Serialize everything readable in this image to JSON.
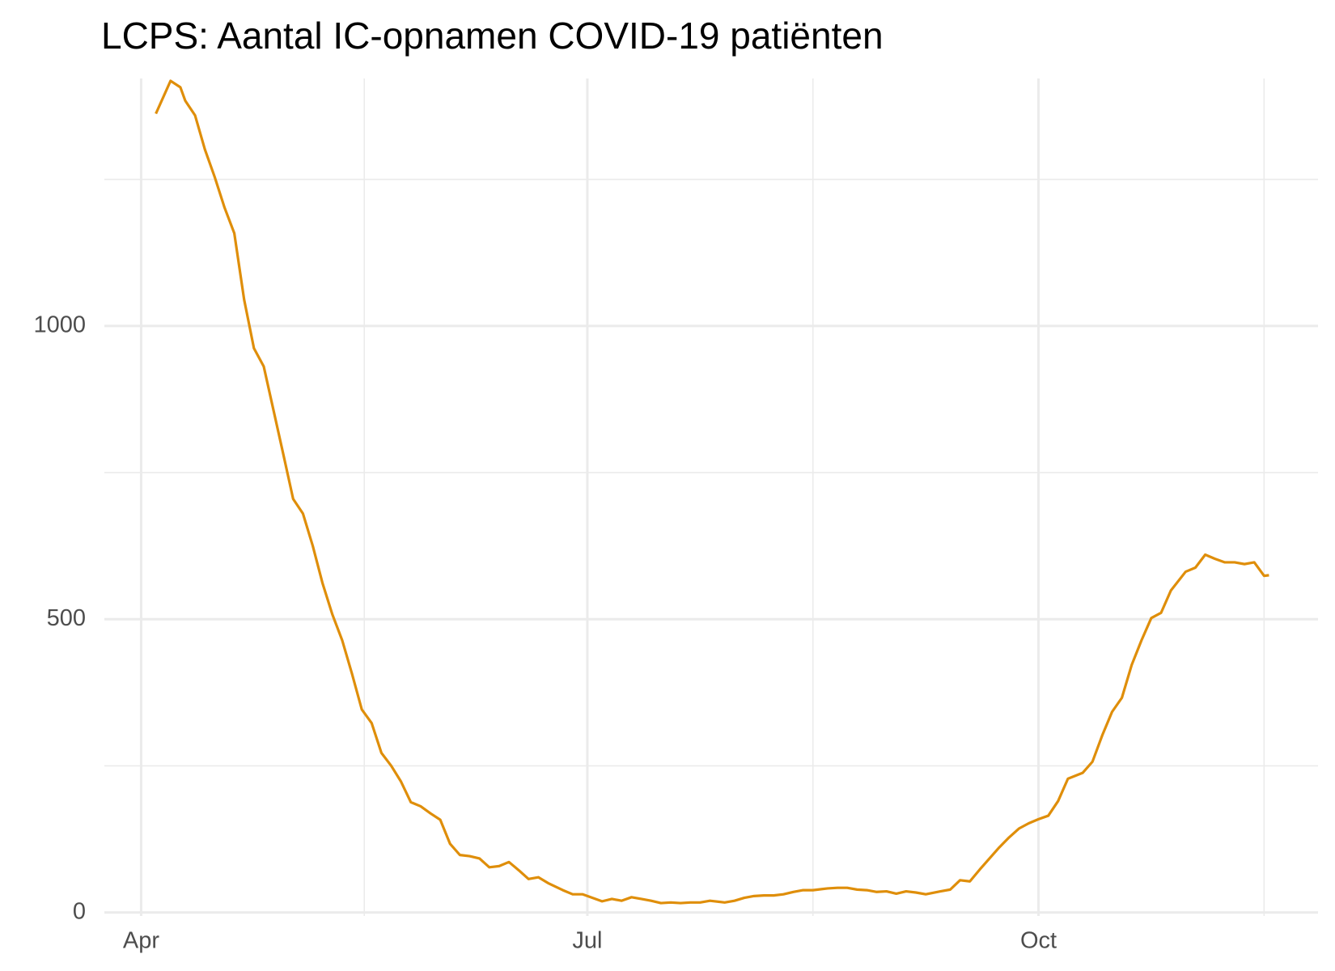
{
  "chart_data": {
    "type": "line",
    "title": "LCPS: Aantal IC-opnamen COVID-19 patiënten",
    "x": [
      3,
      6,
      8,
      9,
      11,
      13,
      15,
      17,
      19,
      21,
      23,
      25,
      27,
      29,
      31,
      33,
      35,
      37,
      39,
      41,
      43,
      45,
      47,
      49,
      51,
      53,
      55,
      57,
      59,
      61,
      63,
      65,
      67,
      69,
      71,
      73,
      75,
      77,
      79,
      81,
      83,
      86,
      88,
      90,
      92,
      94,
      96,
      98,
      100,
      102,
      104,
      106,
      108,
      110,
      112,
      114,
      116,
      119,
      121,
      123,
      125,
      127,
      129,
      131,
      133,
      135,
      137,
      140,
      142,
      144,
      146,
      148,
      150,
      152,
      154,
      156,
      158,
      160,
      163,
      165,
      167,
      169,
      171,
      173,
      175,
      177,
      179,
      181,
      183,
      185,
      187,
      189,
      192,
      194,
      196,
      198,
      200,
      202,
      204,
      206,
      208,
      210,
      213,
      215,
      217,
      219,
      221,
      223,
      225,
      227,
      229,
      230
    ],
    "series": [
      {
        "color": "#df8e0a",
        "values": [
          1362,
          1418,
          1407,
          1384,
          1359,
          1301,
          1254,
          1202,
          1158,
          1045,
          962,
          931,
          856,
          781,
          705,
          680,
          625,
          561,
          508,
          464,
          407,
          346,
          323,
          272,
          250,
          223,
          188,
          181,
          169,
          158,
          117,
          98,
          96,
          92,
          77,
          79,
          86,
          72,
          57,
          60,
          50,
          38,
          31,
          31,
          25,
          19,
          23,
          20,
          26,
          23,
          20,
          16,
          17,
          16,
          17,
          17,
          20,
          17,
          20,
          25,
          28,
          29,
          29,
          31,
          35,
          38,
          38,
          41,
          42,
          42,
          39,
          38,
          35,
          36,
          32,
          36,
          34,
          31,
          36,
          39,
          55,
          53,
          73,
          92,
          111,
          128,
          143,
          152,
          159,
          165,
          190,
          228,
          238,
          257,
          302,
          342,
          366,
          422,
          464,
          502,
          511,
          549,
          581,
          588,
          610,
          603,
          597,
          597,
          594,
          597,
          574,
          575
        ]
      }
    ],
    "xlim": [
      -7.5,
      240
    ],
    "xticks": [
      {
        "value": 0,
        "label": "Apr"
      },
      {
        "value": 91,
        "label": "Jul"
      },
      {
        "value": 183,
        "label": "Oct"
      }
    ],
    "minor_xticks": [
      45.5,
      137,
      229
    ],
    "ylim": [
      -6,
      1422
    ],
    "yticks": [
      0,
      500,
      1000
    ],
    "minor_yticks": [
      250,
      750,
      1250
    ],
    "grid": true
  }
}
